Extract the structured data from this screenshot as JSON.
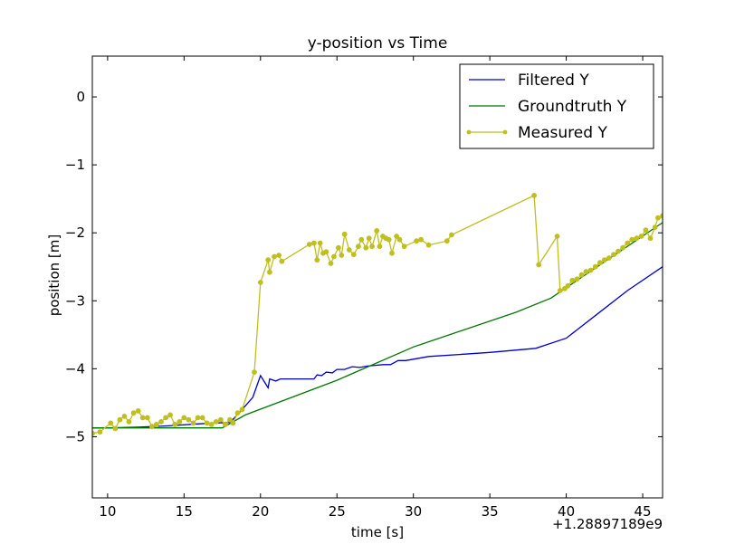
{
  "chart_data": {
    "type": "line",
    "title": "y-position vs Time",
    "xlabel": "time [s]",
    "ylabel": "position [m]",
    "x_offset_label": "+1.28897189e9",
    "xlim": [
      9,
      46.3
    ],
    "ylim": [
      -5.9,
      0.6
    ],
    "xticks": [
      10,
      15,
      20,
      25,
      30,
      35,
      40,
      45
    ],
    "xtick_labels": [
      "10",
      "15",
      "20",
      "25",
      "30",
      "35",
      "40",
      "45"
    ],
    "yticks": [
      0,
      -1,
      -2,
      -3,
      -4,
      -5
    ],
    "ytick_labels": [
      "0",
      "−1",
      "−2",
      "−3",
      "−4",
      "−5"
    ],
    "legend_position": "top-right",
    "series": [
      {
        "name": "Filtered Y",
        "color": "#0000cc",
        "marker": false,
        "x": [
          9,
          10,
          12,
          14,
          16,
          17,
          18,
          18.3,
          18.8,
          19.5,
          20,
          20.5,
          20.6,
          21,
          21.3,
          22,
          23.5,
          23.7,
          24,
          24.3,
          24.7,
          25,
          25.5,
          26,
          26.5,
          27,
          27.5,
          28,
          28.5,
          29,
          29.5,
          30,
          31,
          33,
          35,
          38,
          40,
          42,
          44,
          46.3
        ],
        "y": [
          -4.87,
          -4.87,
          -4.86,
          -4.84,
          -4.81,
          -4.8,
          -4.79,
          -4.72,
          -4.6,
          -4.42,
          -4.1,
          -4.28,
          -4.15,
          -4.18,
          -4.15,
          -4.15,
          -4.15,
          -4.09,
          -4.1,
          -4.05,
          -4.06,
          -4.01,
          -4.01,
          -3.97,
          -3.98,
          -3.96,
          -3.95,
          -3.94,
          -3.94,
          -3.88,
          -3.88,
          -3.86,
          -3.82,
          -3.79,
          -3.76,
          -3.7,
          -3.55,
          -3.2,
          -2.85,
          -2.5
        ]
      },
      {
        "name": "Groundtruth Y",
        "color": "#007700",
        "marker": false,
        "x": [
          9,
          17.5,
          19,
          25,
          30,
          36.7,
          39,
          46.3
        ],
        "y": [
          -4.87,
          -4.87,
          -4.68,
          -4.17,
          -3.68,
          -3.17,
          -2.96,
          -1.85
        ]
      },
      {
        "name": "Measured Y",
        "color": "#bfbf1f",
        "marker": true,
        "x": [
          9,
          9.5,
          10.2,
          10.5,
          10.8,
          11.1,
          11.4,
          11.7,
          12.0,
          12.3,
          12.6,
          12.9,
          13.2,
          13.5,
          13.8,
          14.1,
          14.4,
          14.7,
          15.0,
          15.3,
          15.6,
          15.9,
          16.2,
          16.5,
          16.8,
          17.1,
          17.4,
          17.7,
          18.0,
          18.2,
          18.5,
          18.8,
          19.6,
          20.0,
          20.5,
          20.6,
          20.9,
          21.2,
          21.4,
          23.2,
          23.5,
          23.7,
          23.9,
          24.1,
          24.3,
          24.6,
          24.8,
          25.1,
          25.3,
          25.5,
          25.8,
          26.1,
          26.4,
          26.6,
          26.9,
          27.1,
          27.3,
          27.6,
          27.8,
          28.0,
          28.2,
          28.4,
          28.6,
          28.9,
          29.1,
          29.4,
          30.2,
          30.5,
          31.0,
          32.2,
          32.5,
          37.9,
          38.2,
          39.4,
          39.6,
          39.9,
          40.1,
          40.4,
          40.7,
          41.0,
          41.3,
          41.6,
          41.9,
          42.2,
          42.5,
          42.8,
          43.1,
          43.4,
          43.7,
          44.0,
          44.3,
          44.6,
          44.9,
          45.2,
          45.5,
          45.8,
          46.0,
          46.3
        ],
        "y": [
          -4.95,
          -4.93,
          -4.8,
          -4.88,
          -4.75,
          -4.7,
          -4.78,
          -4.65,
          -4.62,
          -4.72,
          -4.72,
          -4.85,
          -4.82,
          -4.78,
          -4.72,
          -4.68,
          -4.82,
          -4.78,
          -4.72,
          -4.75,
          -4.8,
          -4.72,
          -4.72,
          -4.8,
          -4.82,
          -4.78,
          -4.75,
          -4.82,
          -4.75,
          -4.8,
          -4.65,
          -4.6,
          -4.05,
          -2.73,
          -2.4,
          -2.58,
          -2.35,
          -2.33,
          -2.42,
          -2.17,
          -2.15,
          -2.4,
          -2.15,
          -2.3,
          -2.28,
          -2.45,
          -2.35,
          -2.22,
          -2.33,
          -2.02,
          -2.25,
          -2.32,
          -2.2,
          -2.1,
          -2.22,
          -2.08,
          -2.2,
          -1.97,
          -2.2,
          -2.05,
          -2.08,
          -2.1,
          -2.3,
          -2.05,
          -2.1,
          -2.2,
          -2.12,
          -2.1,
          -2.18,
          -2.12,
          -2.03,
          -1.45,
          -2.47,
          -2.05,
          -2.85,
          -2.82,
          -2.78,
          -2.7,
          -2.68,
          -2.62,
          -2.57,
          -2.55,
          -2.5,
          -2.44,
          -2.4,
          -2.37,
          -2.32,
          -2.27,
          -2.22,
          -2.15,
          -2.1,
          -2.08,
          -2.05,
          -1.96,
          -2.08,
          -1.92,
          -1.78,
          -1.75
        ]
      }
    ]
  }
}
